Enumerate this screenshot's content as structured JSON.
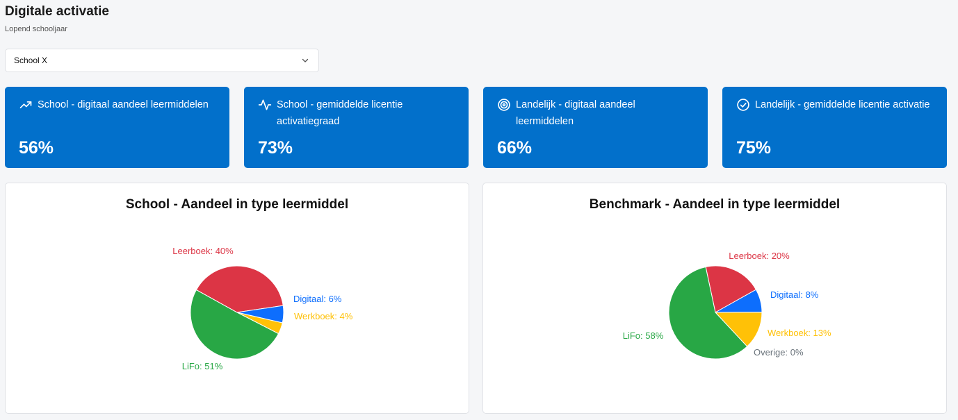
{
  "page": {
    "title": "Digitale activatie",
    "subtitle": "Lopend schooljaar"
  },
  "filter": {
    "selected": "School X"
  },
  "kpis": [
    {
      "label": "School - digitaal aandeel leermiddelen",
      "value": "56%",
      "icon": "trending-up-icon"
    },
    {
      "label": "School - gemiddelde licentie activatiegraad",
      "value": "73%",
      "icon": "activity-icon"
    },
    {
      "label": "Landelijk - digitaal aandeel leermiddelen",
      "value": "66%",
      "icon": "target-icon"
    },
    {
      "label": "Landelijk - gemiddelde licentie activatie",
      "value": "75%",
      "icon": "check-circle-icon"
    }
  ],
  "colors": {
    "kpi_background": "#0270cb",
    "Leerboek": "#dc3545",
    "Digitaal": "#0d6efd",
    "Werkboek": "#ffc107",
    "LiFo": "#28a745",
    "Overige": "#6c757d"
  },
  "chart_data": [
    {
      "type": "pie",
      "title": "School - Aandeel in type leermiddel",
      "categories": [
        "Leerboek",
        "Digitaal",
        "Werkboek",
        "LiFo"
      ],
      "values": [
        40,
        6,
        4,
        51
      ],
      "labels": [
        "Leerboek: 40%",
        "Digitaal: 6%",
        "Werkboek: 4%",
        "LiFo: 51%"
      ]
    },
    {
      "type": "pie",
      "title": "Benchmark - Aandeel in type leermiddel",
      "categories": [
        "Leerboek",
        "Digitaal",
        "Werkboek",
        "Overige",
        "LiFo"
      ],
      "values": [
        20,
        8,
        13,
        0,
        58
      ],
      "labels": [
        "Leerboek: 20%",
        "Digitaal: 8%",
        "Werkboek: 13%",
        "Overige: 0%",
        "LiFo: 58%"
      ]
    }
  ]
}
